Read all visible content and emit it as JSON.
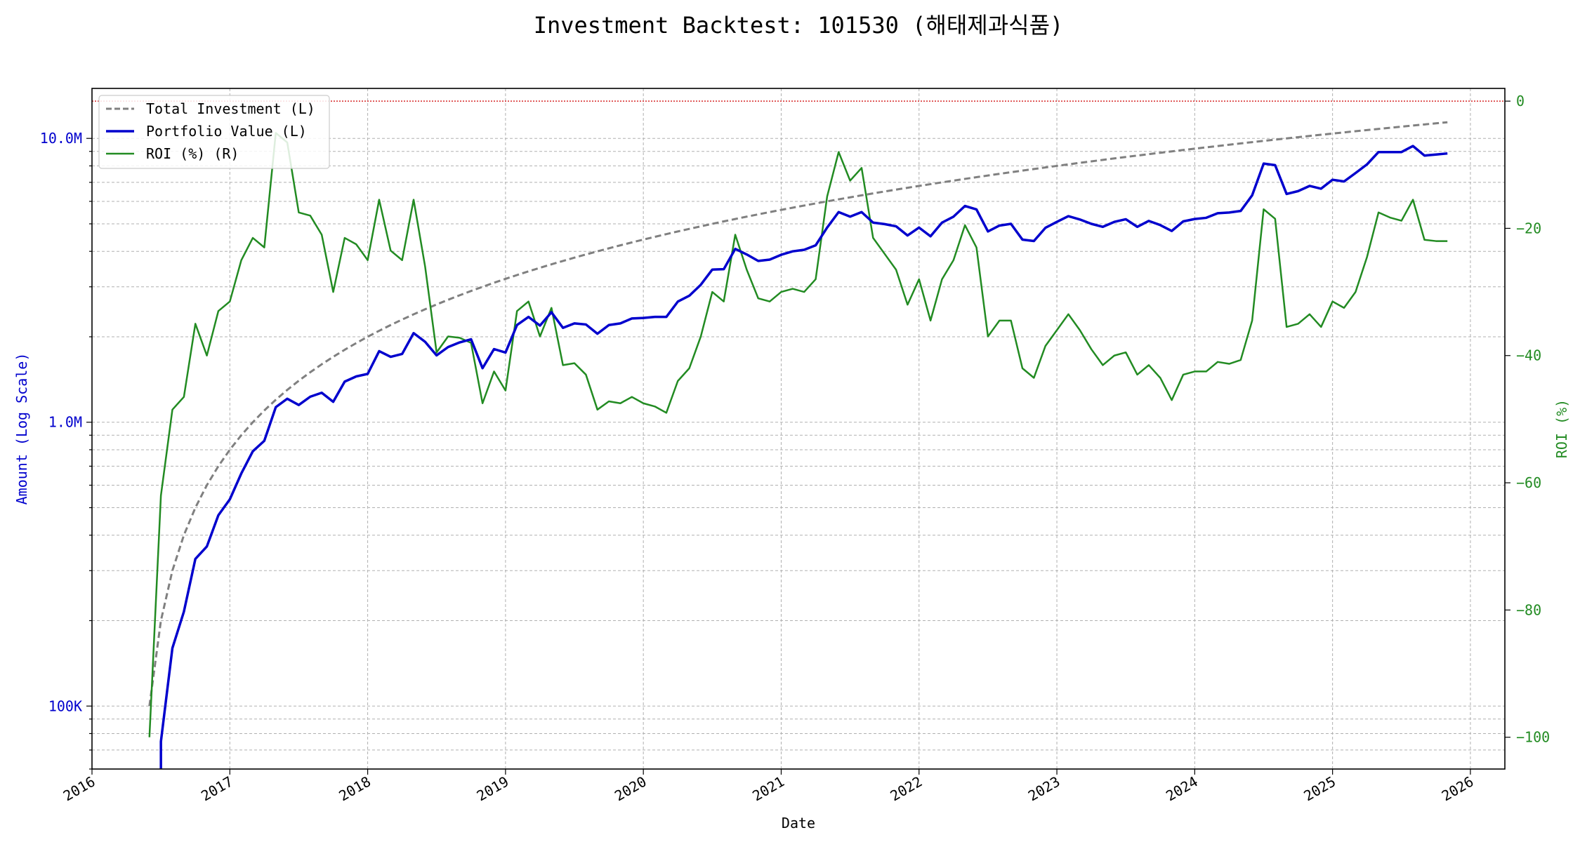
{
  "chart_data": {
    "type": "line",
    "title": "Investment Backtest: 101530 (해태제과식품)",
    "xlabel": "Date",
    "ylabel_left": "Amount (Log Scale)",
    "ylabel_right": "ROI (%)",
    "left_scale": "log",
    "left_ylim": [
      60000,
      15000000
    ],
    "right_ylim": [
      -105,
      2
    ],
    "xlim": [
      "2016-01-01",
      "2026-04-01"
    ],
    "x_ticks": [
      "2016",
      "2017",
      "2018",
      "2019",
      "2020",
      "2021",
      "2022",
      "2023",
      "2024",
      "2025",
      "2026"
    ],
    "left_ticks": [
      {
        "value": 100000,
        "label": "100K"
      },
      {
        "value": 1000000,
        "label": "1.0M"
      },
      {
        "value": 10000000,
        "label": "10.0M"
      }
    ],
    "right_ticks": [
      {
        "value": 0,
        "label": "0"
      },
      {
        "value": -20,
        "label": "−20"
      },
      {
        "value": -40,
        "label": "−40"
      },
      {
        "value": -60,
        "label": "−60"
      },
      {
        "value": -80,
        "label": "−80"
      },
      {
        "value": -100,
        "label": "−100"
      }
    ],
    "grid": true,
    "legend_position": "top-left",
    "reference_line": {
      "axis": "right",
      "value": 0,
      "color": "#d62728"
    },
    "colors": {
      "investment": "#808080",
      "portfolio": "#0000cd",
      "roi": "#228b22",
      "left_axis": "#0000cd",
      "right_axis": "#228b22"
    },
    "series": [
      {
        "name": "Total Investment (L)",
        "axis": "left",
        "style": "dashed",
        "x": [
          "2016-06",
          "2016-07",
          "2016-08",
          "2016-09",
          "2016-10",
          "2016-11",
          "2016-12",
          "2017-01",
          "2017-02",
          "2017-03",
          "2017-04",
          "2017-05",
          "2017-06",
          "2017-07",
          "2017-08",
          "2017-09",
          "2017-10",
          "2017-11",
          "2017-12",
          "2018-01",
          "2018-02",
          "2018-03",
          "2018-04",
          "2018-05",
          "2018-06",
          "2018-07",
          "2018-08",
          "2018-09",
          "2018-10",
          "2018-11",
          "2018-12",
          "2019-01",
          "2019-02",
          "2019-03",
          "2019-04",
          "2019-05",
          "2019-06",
          "2019-07",
          "2019-08",
          "2019-09",
          "2019-10",
          "2019-11",
          "2019-12",
          "2020-01",
          "2020-02",
          "2020-03",
          "2020-04",
          "2020-05",
          "2020-06",
          "2020-07",
          "2020-08",
          "2020-09",
          "2020-10",
          "2020-11",
          "2020-12",
          "2021-01",
          "2021-02",
          "2021-03",
          "2021-04",
          "2021-05",
          "2021-06",
          "2021-07",
          "2021-08",
          "2021-09",
          "2021-10",
          "2021-11",
          "2021-12",
          "2022-01",
          "2022-02",
          "2022-03",
          "2022-04",
          "2022-05",
          "2022-06",
          "2022-07",
          "2022-08",
          "2022-09",
          "2022-10",
          "2022-11",
          "2022-12",
          "2023-01",
          "2023-02",
          "2023-03",
          "2023-04",
          "2023-05",
          "2023-06",
          "2023-07",
          "2023-08",
          "2023-09",
          "2023-10",
          "2023-11",
          "2023-12",
          "2024-01",
          "2024-02",
          "2024-03",
          "2024-04",
          "2024-05",
          "2024-06",
          "2024-07",
          "2024-08",
          "2024-09",
          "2024-10",
          "2024-11",
          "2024-12",
          "2025-01",
          "2025-02",
          "2025-03",
          "2025-04",
          "2025-05",
          "2025-06",
          "2025-07",
          "2025-08",
          "2025-09",
          "2025-10",
          "2025-11"
        ],
        "values": [
          100000,
          200000,
          300000,
          400000,
          500000,
          600000,
          700000,
          800000,
          900000,
          1000000,
          1100000,
          1200000,
          1300000,
          1400000,
          1500000,
          1600000,
          1700000,
          1800000,
          1900000,
          2000000,
          2100000,
          2200000,
          2300000,
          2400000,
          2500000,
          2600000,
          2700000,
          2800000,
          2900000,
          3000000,
          3100000,
          3200000,
          3300000,
          3400000,
          3500000,
          3600000,
          3700000,
          3800000,
          3900000,
          4000000,
          4100000,
          4200000,
          4300000,
          4400000,
          4500000,
          4600000,
          4700000,
          4800000,
          4900000,
          5000000,
          5100000,
          5200000,
          5300000,
          5400000,
          5500000,
          5600000,
          5700000,
          5800000,
          5900000,
          6000000,
          6100000,
          6200000,
          6300000,
          6400000,
          6500000,
          6600000,
          6700000,
          6800000,
          6900000,
          7000000,
          7100000,
          7200000,
          7300000,
          7400000,
          7500000,
          7600000,
          7700000,
          7800000,
          7900000,
          8000000,
          8100000,
          8200000,
          8300000,
          8400000,
          8500000,
          8600000,
          8700000,
          8800000,
          8900000,
          9000000,
          9100000,
          9200000,
          9300000,
          9400000,
          9500000,
          9600000,
          9700000,
          9800000,
          9900000,
          10000000,
          10100000,
          10200000,
          10300000,
          10400000,
          10500000,
          10600000,
          10700000,
          10800000,
          10900000,
          11000000,
          11100000,
          11200000,
          11300000,
          11400000
        ]
      },
      {
        "name": "Portfolio Value (L)",
        "axis": "left",
        "style": "solid",
        "x": [
          "2016-07",
          "2016-08",
          "2016-09",
          "2016-10",
          "2016-11",
          "2016-12",
          "2017-01",
          "2017-02",
          "2017-03",
          "2017-04",
          "2017-05",
          "2017-06",
          "2017-07",
          "2017-08",
          "2017-09",
          "2017-10",
          "2017-11",
          "2017-12",
          "2018-01",
          "2018-02",
          "2018-03",
          "2018-04",
          "2018-05",
          "2018-06",
          "2018-07",
          "2018-08",
          "2018-09",
          "2018-10",
          "2018-11",
          "2018-12",
          "2019-01",
          "2019-02",
          "2019-03",
          "2019-04",
          "2019-05",
          "2019-06",
          "2019-07",
          "2019-08",
          "2019-09",
          "2019-10",
          "2019-11",
          "2019-12",
          "2020-01",
          "2020-02",
          "2020-03",
          "2020-04",
          "2020-05",
          "2020-06",
          "2020-07",
          "2020-08",
          "2020-09",
          "2020-10",
          "2020-11",
          "2020-12",
          "2021-01",
          "2021-02",
          "2021-03",
          "2021-04",
          "2021-05",
          "2021-06",
          "2021-07",
          "2021-08",
          "2021-09",
          "2021-10",
          "2021-11",
          "2021-12",
          "2022-01",
          "2022-02",
          "2022-03",
          "2022-04",
          "2022-05",
          "2022-06",
          "2022-07",
          "2022-08",
          "2022-09",
          "2022-10",
          "2022-11",
          "2022-12",
          "2023-01",
          "2023-02",
          "2023-03",
          "2023-04",
          "2023-05",
          "2023-06",
          "2023-07",
          "2023-08",
          "2023-09",
          "2023-10",
          "2023-11",
          "2023-12",
          "2024-01",
          "2024-02",
          "2024-03",
          "2024-04",
          "2024-05",
          "2024-06",
          "2024-07",
          "2024-08",
          "2024-09",
          "2024-10",
          "2024-11",
          "2024-12",
          "2025-01",
          "2025-02",
          "2025-03",
          "2025-04",
          "2025-05",
          "2025-06",
          "2025-07",
          "2025-08",
          "2025-09",
          "2025-10",
          "2025-11"
        ],
        "values": [
          75000,
          160000,
          215000,
          330000,
          365000,
          470000,
          535000,
          660000,
          790000,
          860000,
          1130000,
          1210000,
          1150000,
          1230000,
          1270000,
          1180000,
          1390000,
          1450000,
          1480000,
          1780000,
          1700000,
          1740000,
          2060000,
          1920000,
          1720000,
          1840000,
          1910000,
          1960000,
          1550000,
          1810000,
          1760000,
          2200000,
          2350000,
          2190000,
          2440000,
          2150000,
          2230000,
          2210000,
          2050000,
          2200000,
          2230000,
          2320000,
          2330000,
          2350000,
          2350000,
          2660000,
          2790000,
          3050000,
          3450000,
          3460000,
          4080000,
          3900000,
          3700000,
          3740000,
          3890000,
          4000000,
          4050000,
          4200000,
          4850000,
          5500000,
          5300000,
          5500000,
          5050000,
          4990000,
          4900000,
          4550000,
          4850000,
          4520000,
          5050000,
          5300000,
          5780000,
          5620000,
          4700000,
          4930000,
          5000000,
          4400000,
          4350000,
          4840000,
          5080000,
          5320000,
          5180000,
          5000000,
          4880000,
          5080000,
          5190000,
          4880000,
          5120000,
          4950000,
          4720000,
          5100000,
          5200000,
          5250000,
          5450000,
          5480000,
          5550000,
          6300000,
          8150000,
          8050000,
          6370000,
          6520000,
          6800000,
          6650000,
          7150000,
          7050000,
          7550000,
          8100000,
          8950000,
          8950000,
          8950000,
          9400000,
          8700000,
          8770000,
          8850000
        ]
      },
      {
        "name": "ROI (%) (R)",
        "axis": "right",
        "style": "solid",
        "x": [
          "2016-06",
          "2016-07",
          "2016-08",
          "2016-09",
          "2016-10",
          "2016-11",
          "2016-12",
          "2017-01",
          "2017-02",
          "2017-03",
          "2017-04",
          "2017-05",
          "2017-06",
          "2017-07",
          "2017-08",
          "2017-09",
          "2017-10",
          "2017-11",
          "2017-12",
          "2018-01",
          "2018-02",
          "2018-03",
          "2018-04",
          "2018-05",
          "2018-06",
          "2018-07",
          "2018-08",
          "2018-09",
          "2018-10",
          "2018-11",
          "2018-12",
          "2019-01",
          "2019-02",
          "2019-03",
          "2019-04",
          "2019-05",
          "2019-06",
          "2019-07",
          "2019-08",
          "2019-09",
          "2019-10",
          "2019-11",
          "2019-12",
          "2020-01",
          "2020-02",
          "2020-03",
          "2020-04",
          "2020-05",
          "2020-06",
          "2020-07",
          "2020-08",
          "2020-09",
          "2020-10",
          "2020-11",
          "2020-12",
          "2021-01",
          "2021-02",
          "2021-03",
          "2021-04",
          "2021-05",
          "2021-06",
          "2021-07",
          "2021-08",
          "2021-09",
          "2021-10",
          "2021-11",
          "2021-12",
          "2022-01",
          "2022-02",
          "2022-03",
          "2022-04",
          "2022-05",
          "2022-06",
          "2022-07",
          "2022-08",
          "2022-09",
          "2022-10",
          "2022-11",
          "2022-12",
          "2023-01",
          "2023-02",
          "2023-03",
          "2023-04",
          "2023-05",
          "2023-06",
          "2023-07",
          "2023-08",
          "2023-09",
          "2023-10",
          "2023-11",
          "2023-12",
          "2024-01",
          "2024-02",
          "2024-03",
          "2024-04",
          "2024-05",
          "2024-06",
          "2024-07",
          "2024-08",
          "2024-09",
          "2024-10",
          "2024-11",
          "2024-12",
          "2025-01",
          "2025-02",
          "2025-03",
          "2025-04",
          "2025-05",
          "2025-06",
          "2025-07",
          "2025-08",
          "2025-09",
          "2025-10",
          "2025-11"
        ],
        "values": [
          -100,
          -62,
          -48.5,
          -46.5,
          -35,
          -40,
          -33,
          -31.5,
          -25,
          -21.5,
          -23,
          -5,
          -6.5,
          -17.5,
          -18,
          -21,
          -30,
          -21.5,
          -22.5,
          -25,
          -15.5,
          -23.5,
          -25,
          -15.5,
          -26,
          -39.5,
          -37,
          -37.2,
          -38,
          -47.5,
          -42.5,
          -45.5,
          -33,
          -31.5,
          -37,
          -32.5,
          -41.5,
          -41.2,
          -43,
          -48.5,
          -47.2,
          -47.5,
          -46.5,
          -47.5,
          -48,
          -49,
          -44,
          -42,
          -37,
          -30,
          -31.5,
          -21,
          -26.5,
          -31,
          -31.5,
          -30,
          -29.5,
          -30,
          -28,
          -15,
          -8,
          -12.5,
          -10.5,
          -21.5,
          -24,
          -26.5,
          -32,
          -28,
          -34.5,
          -28,
          -25,
          -19.5,
          -23,
          -37,
          -34.5,
          -34.5,
          -42,
          -43.5,
          -38.5,
          -36,
          -33.5,
          -36,
          -39,
          -41.5,
          -40,
          -39.5,
          -43,
          -41.5,
          -43.5,
          -47,
          -43,
          -42.5,
          -42.5,
          -41,
          -41.3,
          -40.7,
          -34.5,
          -17,
          -18.5,
          -35.5,
          -35,
          -33.5,
          -35.5,
          -31.5,
          -32.5,
          -30,
          -24.5,
          -17.5,
          -18.3,
          -18.8,
          -15.5,
          -21.8,
          -22,
          -22
        ]
      }
    ]
  }
}
